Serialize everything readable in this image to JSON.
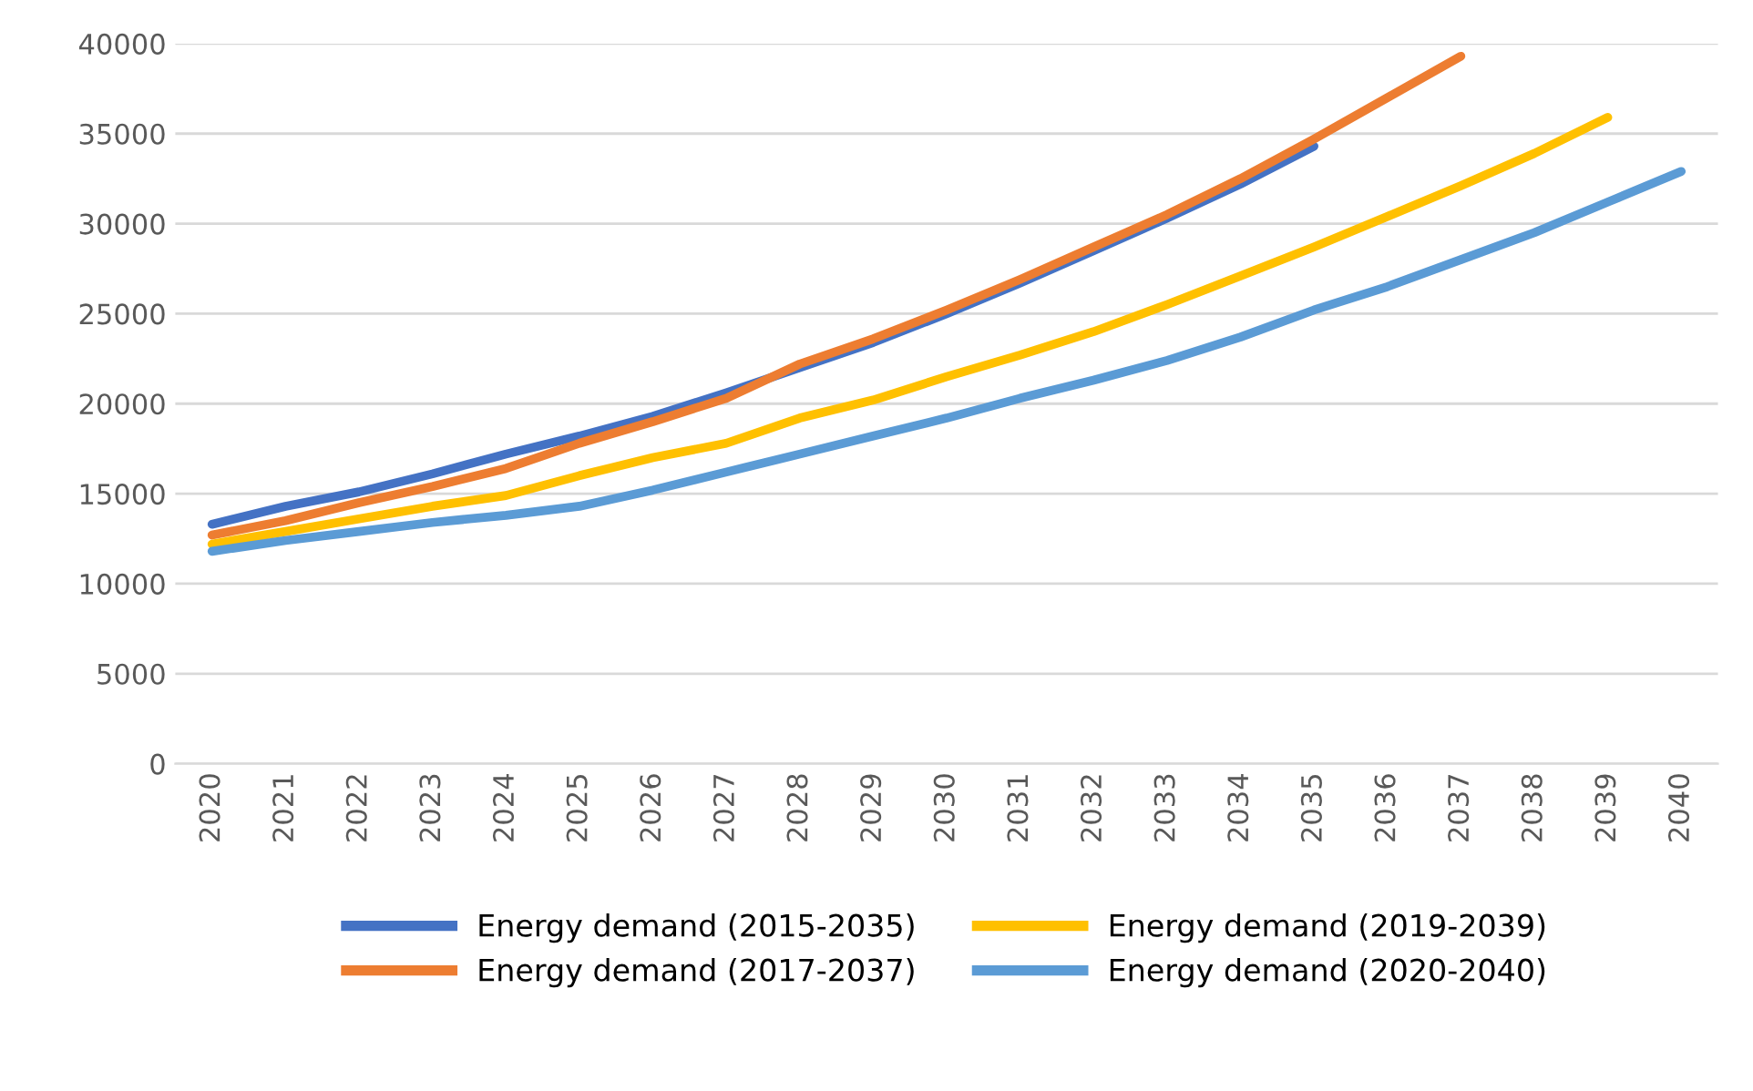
{
  "chart_data": {
    "type": "line",
    "categories": [
      "2020",
      "2021",
      "2022",
      "2023",
      "2024",
      "2025",
      "2026",
      "2027",
      "2028",
      "2029",
      "2030",
      "2031",
      "2032",
      "2033",
      "2034",
      "2035",
      "2036",
      "2037",
      "2038",
      "2039",
      "2040"
    ],
    "series": [
      {
        "name": "Energy demand (2015-2035)",
        "color": "#4472c4",
        "values": [
          13300,
          14300,
          15100,
          16100,
          17200,
          18200,
          19300,
          20600,
          22000,
          23400,
          25000,
          26700,
          28500,
          30300,
          32200,
          34300,
          null,
          null,
          null,
          null,
          null
        ]
      },
      {
        "name": "Energy demand (2017-2037)",
        "color": "#ed7d31",
        "values": [
          12700,
          13500,
          14500,
          15400,
          16400,
          17800,
          19000,
          20300,
          22200,
          23600,
          25200,
          26900,
          28700,
          30500,
          32500,
          34700,
          37000,
          39300,
          null,
          null,
          null
        ]
      },
      {
        "name": "Energy demand (2019-2039)",
        "color": "#ffc000",
        "values": [
          12200,
          12900,
          13600,
          14300,
          14900,
          16000,
          17000,
          17800,
          19200,
          20200,
          21500,
          22700,
          24000,
          25500,
          27100,
          28700,
          30400,
          32100,
          33900,
          35900,
          null
        ]
      },
      {
        "name": "Energy demand (2020-2040)",
        "color": "#5b9bd5",
        "values": [
          11800,
          12400,
          12900,
          13400,
          13800,
          14300,
          15200,
          16200,
          17200,
          18200,
          19200,
          20300,
          21300,
          22400,
          23700,
          25200,
          26500,
          28000,
          29500,
          31200,
          32900
        ]
      }
    ],
    "ylim": [
      0,
      40000
    ],
    "yticks": [
      0,
      5000,
      10000,
      15000,
      20000,
      25000,
      30000,
      35000,
      40000
    ],
    "grid": "y",
    "legend": "bottom",
    "marker": "none",
    "line_style": "solid"
  }
}
